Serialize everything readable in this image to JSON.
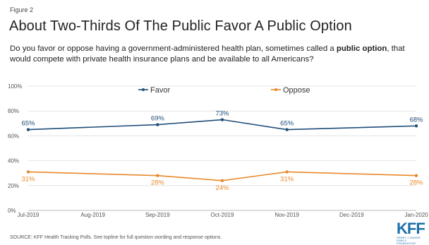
{
  "figure_label": "Figure 2",
  "title": "About Two-Thirds Of The Public Favor A Public Option",
  "subtitle_before": "Do you favor or oppose having a government-administered health plan, sometimes called a ",
  "subtitle_bold": "public option",
  "subtitle_after": ", that would compete with private health insurance plans and be available to all Americans?",
  "source": "SOURCE: KFF Health Tracking Polls. See topline for full question wording and response options.",
  "logo": {
    "mark": "KFF",
    "sub": "HENRY J KAISER FAMILY FOUNDATION"
  },
  "chart_data": {
    "type": "line",
    "x": [
      "Jul-2019",
      "Aug-2019",
      "Sep-2019",
      "Oct-2019",
      "Nov-2019",
      "Dec-2019",
      "Jan-2020"
    ],
    "y_ticks": [
      "0%",
      "20%",
      "40%",
      "60%",
      "80%",
      "100%"
    ],
    "ylim": [
      0,
      100
    ],
    "legend_position": "top",
    "grid": true,
    "series": [
      {
        "name": "Favor",
        "color": "#1f4e79",
        "points": [
          {
            "x": "Jul-2019",
            "y": 65,
            "label": "65%"
          },
          {
            "x": "Sep-2019",
            "y": 69,
            "label": "69%"
          },
          {
            "x": "Oct-2019",
            "y": 73,
            "label": "73%"
          },
          {
            "x": "Nov-2019",
            "y": 65,
            "label": "65%"
          },
          {
            "x": "Jan-2020",
            "y": 68,
            "label": "68%"
          }
        ]
      },
      {
        "name": "Oppose",
        "color": "#e8892b",
        "points": [
          {
            "x": "Jul-2019",
            "y": 31,
            "label": "31%"
          },
          {
            "x": "Sep-2019",
            "y": 28,
            "label": "28%"
          },
          {
            "x": "Oct-2019",
            "y": 24,
            "label": "24%"
          },
          {
            "x": "Nov-2019",
            "y": 31,
            "label": "31%"
          },
          {
            "x": "Jan-2020",
            "y": 28,
            "label": "28%"
          }
        ]
      }
    ]
  }
}
